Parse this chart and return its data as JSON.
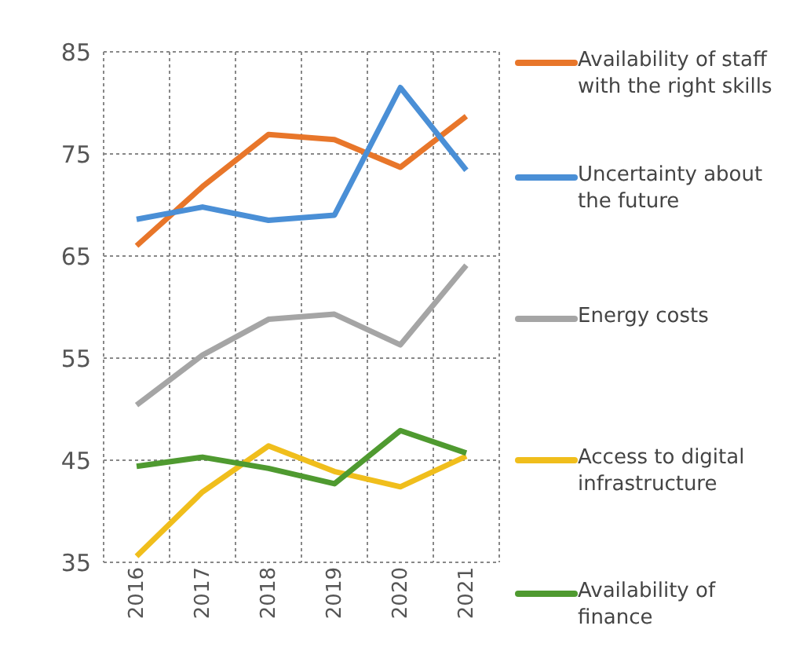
{
  "chart_data": {
    "type": "line",
    "categories": [
      "2016",
      "2017",
      "2018",
      "2019",
      "2020",
      "2021"
    ],
    "series": [
      {
        "name": "Availability of staff with the right skills",
        "color": "#e8762a",
        "values": [
          66.0,
          71.8,
          76.9,
          76.4,
          73.7,
          78.7
        ]
      },
      {
        "name": "Uncertainty about the future",
        "color": "#4a8fd6",
        "values": [
          68.6,
          69.8,
          68.5,
          69.0,
          81.5,
          73.4
        ]
      },
      {
        "name": "Energy costs",
        "color": "#a5a5a5",
        "values": [
          50.4,
          55.3,
          58.8,
          59.3,
          56.3,
          64.1
        ]
      },
      {
        "name": "Access to digital infrastructure",
        "color": "#f0be1c",
        "values": [
          35.6,
          41.9,
          46.4,
          43.9,
          42.4,
          45.4
        ]
      },
      {
        "name": "Availability of finance",
        "color": "#4f9a30",
        "values": [
          44.4,
          45.3,
          44.2,
          42.7,
          47.9,
          45.7
        ]
      }
    ],
    "ylim": [
      35,
      85
    ],
    "yticks": [
      35,
      45,
      55,
      65,
      75,
      85
    ],
    "grid": true,
    "legend": "right",
    "marker": "none",
    "line_style": "solid"
  }
}
